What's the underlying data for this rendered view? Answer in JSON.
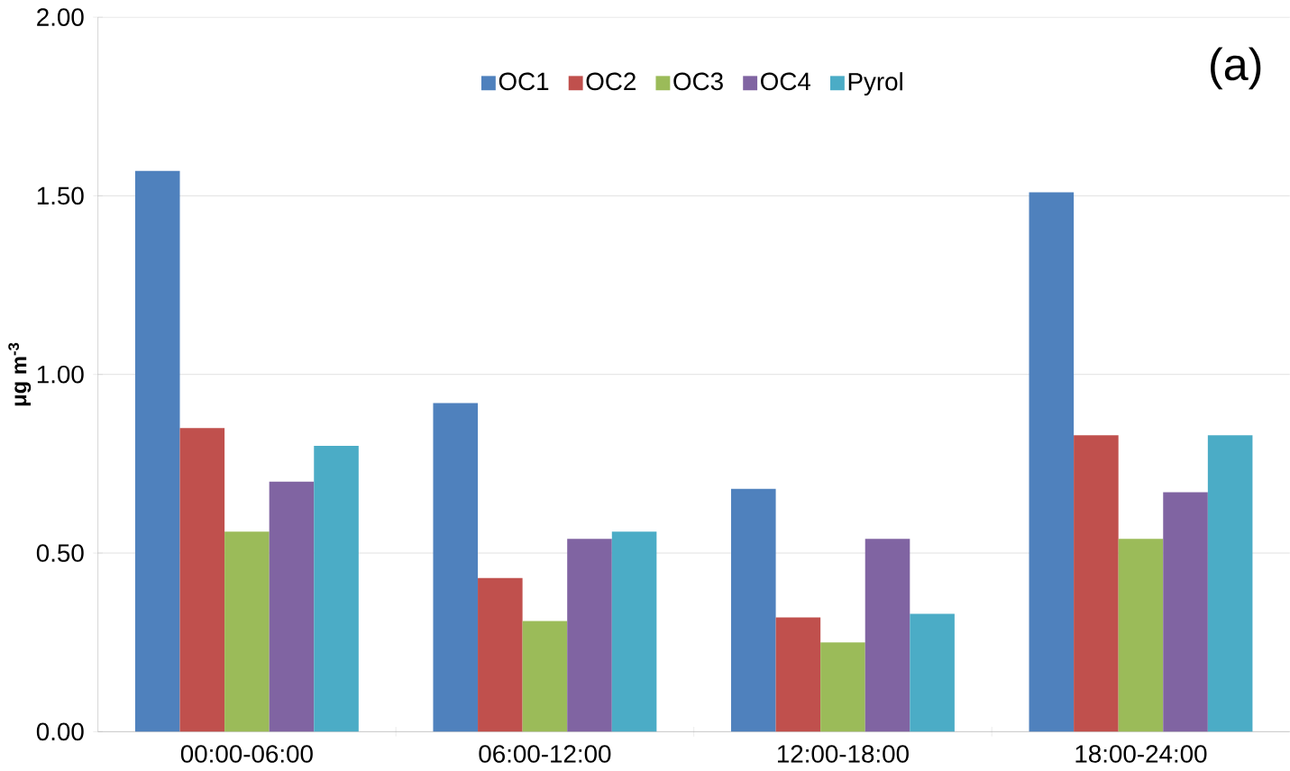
{
  "chart_data": {
    "type": "bar",
    "categories": [
      "00:00-06:00",
      "06:00-12:00",
      "12:00-18:00",
      "18:00-24:00"
    ],
    "series": [
      {
        "name": "OC1",
        "color": "#4f81bd",
        "values": [
          1.57,
          0.92,
          0.68,
          1.51
        ]
      },
      {
        "name": "OC2",
        "color": "#c0504d",
        "values": [
          0.85,
          0.43,
          0.32,
          0.83
        ]
      },
      {
        "name": "OC3",
        "color": "#9bbb59",
        "values": [
          0.56,
          0.31,
          0.25,
          0.54
        ]
      },
      {
        "name": "OC4",
        "color": "#8064a2",
        "values": [
          0.7,
          0.54,
          0.54,
          0.67
        ]
      },
      {
        "name": "Pyrol",
        "color": "#4bacc6",
        "values": [
          0.8,
          0.56,
          0.33,
          0.83
        ]
      }
    ],
    "ylabel": "μg m$^{-3}$",
    "ylim": [
      0,
      2
    ],
    "yticks": [
      {
        "value": 0,
        "label": "0.00"
      },
      {
        "value": 0.5,
        "label": "0.50"
      },
      {
        "value": 1,
        "label": "1.00"
      },
      {
        "value": 1.5,
        "label": "1.50"
      },
      {
        "value": 2,
        "label": "2.00"
      }
    ],
    "grid": "y",
    "legend": "top",
    "annotations": [
      "(a)"
    ]
  }
}
